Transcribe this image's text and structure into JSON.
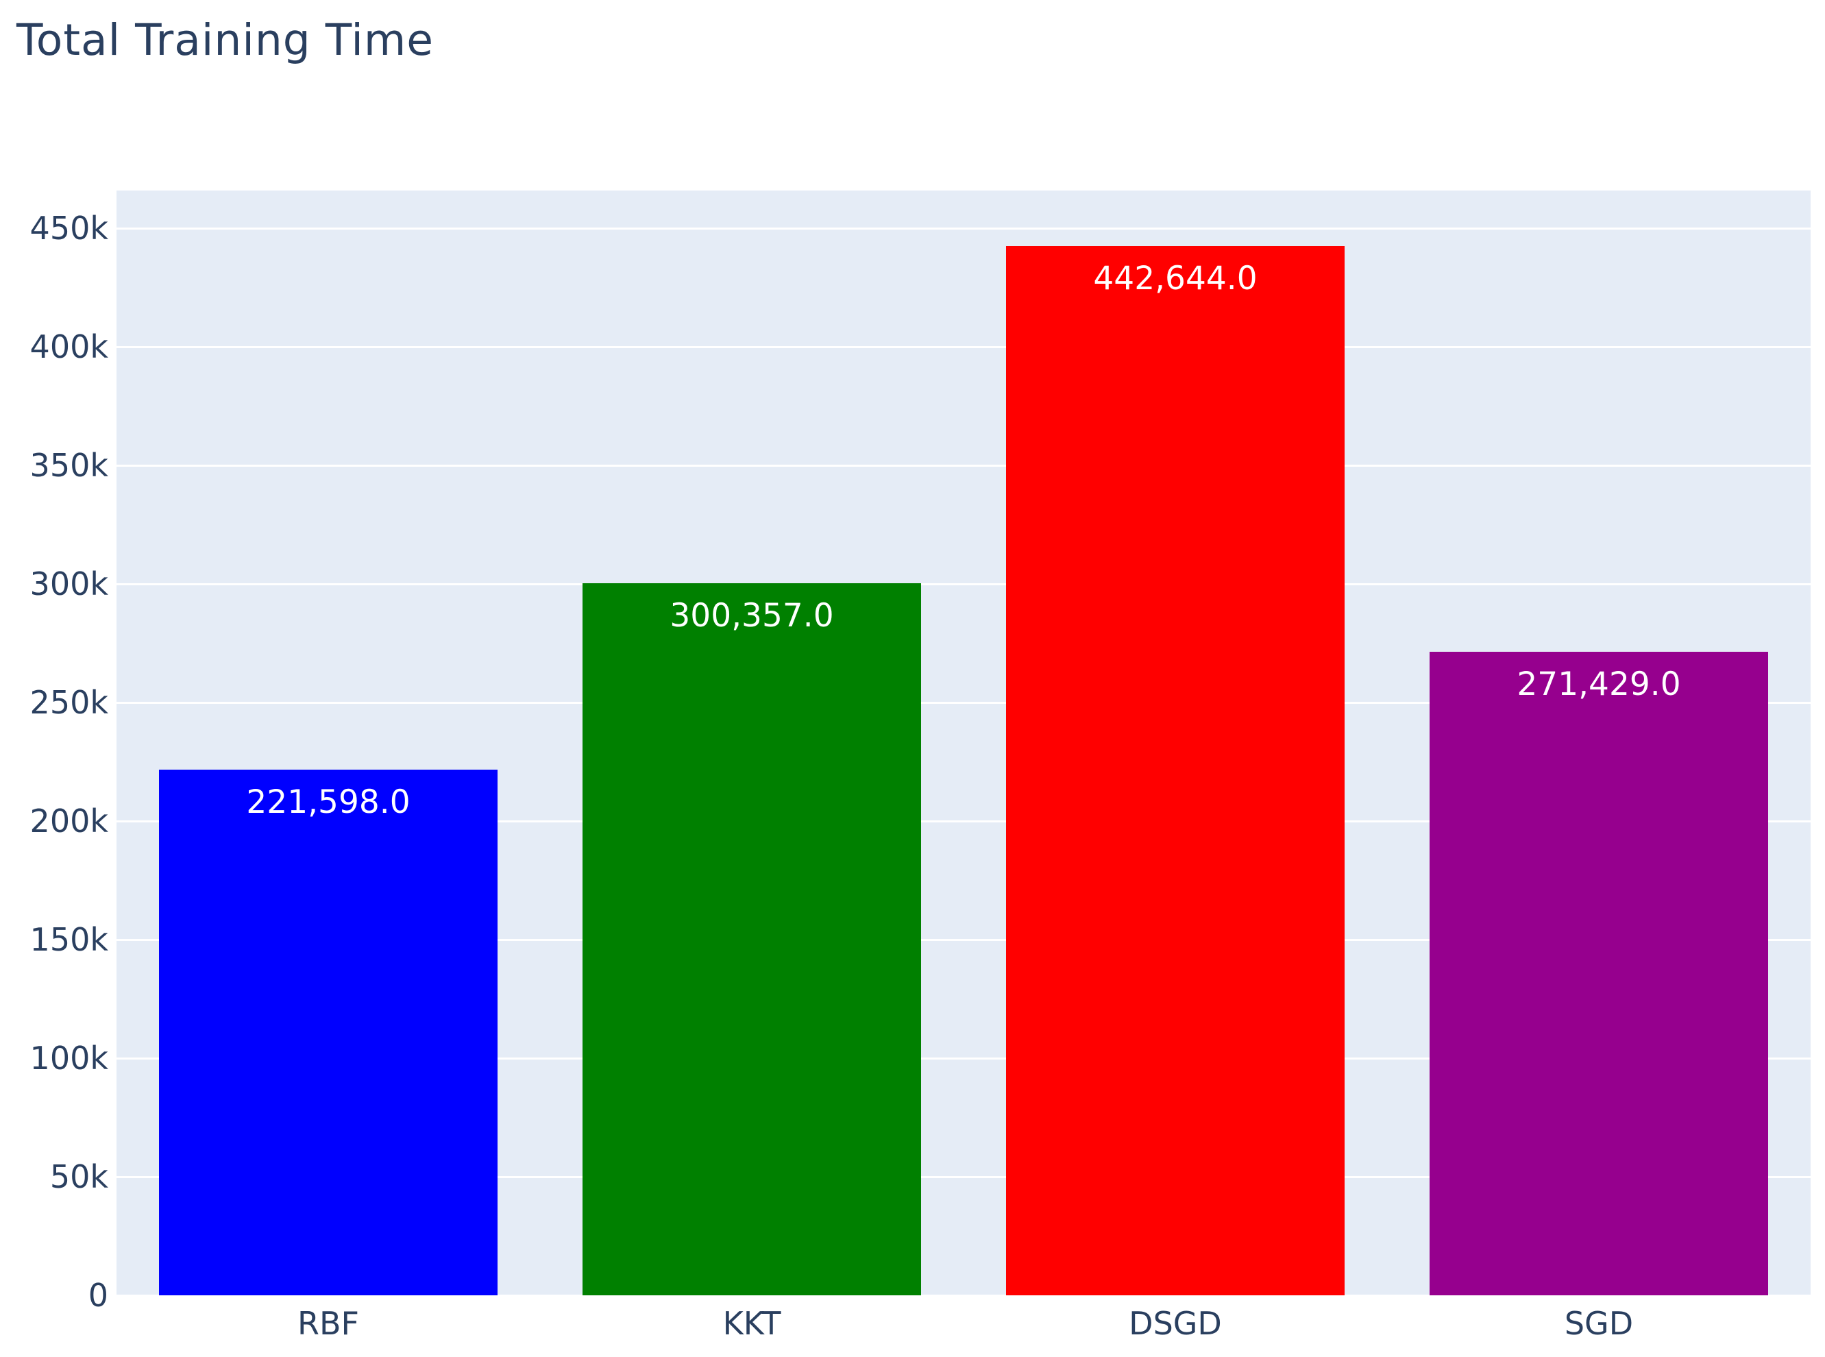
{
  "chart_data": {
    "type": "bar",
    "title": "Total Training Time",
    "categories": [
      "RBF",
      "KKT",
      "DSGD",
      "SGD"
    ],
    "values": [
      221598,
      300357,
      442644,
      271429
    ],
    "value_labels": [
      "221,598.0",
      "300,357.0",
      "442,644.0",
      "271,429.0"
    ],
    "bar_colors": [
      "#0000ff",
      "#008000",
      "#ff0000",
      "#96008e"
    ],
    "xlabel": "",
    "ylabel": "",
    "ylim": [
      0,
      466000
    ],
    "yticks": [
      0,
      50000,
      100000,
      150000,
      200000,
      250000,
      300000,
      350000,
      400000,
      450000
    ],
    "ytick_labels": [
      "0",
      "50k",
      "100k",
      "150k",
      "200k",
      "250k",
      "300k",
      "350k",
      "400k",
      "450k"
    ],
    "grid": true,
    "legend": "none",
    "colors": {
      "plot_background": "#e5ecf6",
      "paper_background": "#ffffff",
      "grid_color": "#ffffff",
      "text_color": "#2a3f5f",
      "bar_label_color": "#ffffff"
    }
  }
}
